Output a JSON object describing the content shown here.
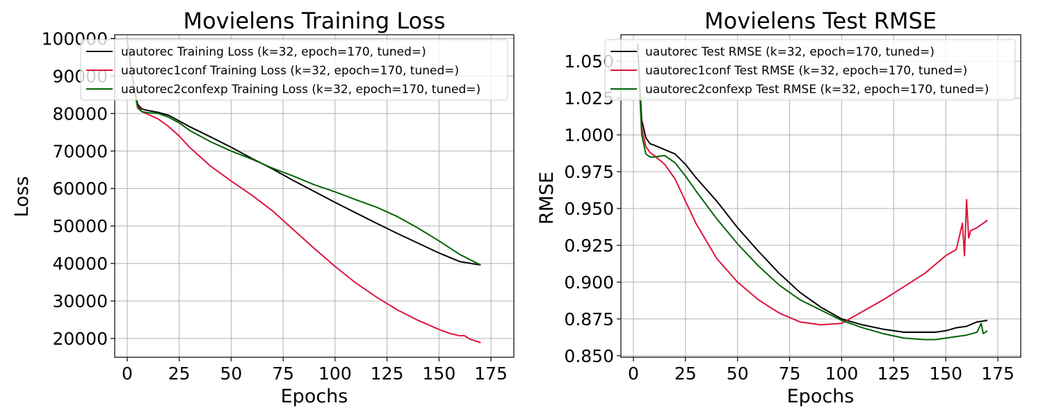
{
  "chart_data": [
    {
      "type": "line",
      "title": "Movielens Training Loss",
      "xlabel": "Epochs",
      "ylabel": "Loss",
      "xlim": [
        -6,
        186
      ],
      "ylim": [
        15000,
        101000
      ],
      "xticks": [
        0,
        25,
        50,
        75,
        100,
        125,
        150,
        175
      ],
      "xtick_labels": [
        "0",
        "25",
        "50",
        "75",
        "100",
        "125",
        "150",
        "175"
      ],
      "yticks": [
        20000,
        30000,
        40000,
        50000,
        60000,
        70000,
        80000,
        90000,
        100000
      ],
      "ytick_labels": [
        "20000",
        "30000",
        "40000",
        "50000",
        "60000",
        "70000",
        "80000",
        "90000",
        "100000"
      ],
      "grid": true,
      "legend_position": "top",
      "series": [
        {
          "name": "uautorec Training Loss (k=32, epoch=170, tuned=)",
          "color": "#000000",
          "x": [
            0,
            3,
            5,
            7,
            10,
            15,
            20,
            25,
            30,
            40,
            50,
            60,
            70,
            80,
            90,
            100,
            110,
            120,
            130,
            140,
            150,
            160,
            170
          ],
          "y": [
            99500,
            88000,
            82500,
            81200,
            80800,
            80300,
            79500,
            78000,
            76500,
            73800,
            71000,
            68000,
            65200,
            62100,
            59200,
            56300,
            53500,
            50700,
            48000,
            45400,
            42800,
            40500,
            39600
          ]
        },
        {
          "name": "uautorec1conf Training Loss (k=32, epoch=170, tuned=)",
          "color": "#dc143c",
          "x": [
            0,
            3,
            5,
            7,
            10,
            15,
            20,
            25,
            30,
            40,
            50,
            60,
            70,
            80,
            90,
            100,
            110,
            120,
            130,
            140,
            150,
            155,
            160,
            162,
            165,
            170
          ],
          "y": [
            99500,
            88000,
            82000,
            80500,
            79800,
            78500,
            76500,
            74000,
            71000,
            66000,
            62000,
            58200,
            54000,
            49000,
            44000,
            39200,
            34800,
            31000,
            27600,
            24800,
            22400,
            21400,
            20700,
            20800,
            19800,
            18900
          ]
        },
        {
          "name": "uautorec2confexp Training Loss (k=32, epoch=170, tuned=)",
          "color": "#006400",
          "x": [
            0,
            3,
            5,
            7,
            10,
            15,
            20,
            25,
            30,
            40,
            50,
            60,
            70,
            80,
            90,
            100,
            110,
            120,
            130,
            140,
            150,
            160,
            170
          ],
          "y": [
            99500,
            87500,
            81500,
            80500,
            80200,
            80000,
            79000,
            77500,
            75500,
            72500,
            70000,
            67800,
            65400,
            63300,
            61000,
            59100,
            57000,
            55000,
            52500,
            49400,
            46000,
            42400,
            39600
          ]
        }
      ]
    },
    {
      "type": "line",
      "title": "Movielens Test RMSE",
      "xlabel": "Epochs",
      "ylabel": "RMSE",
      "xlim": [
        -6,
        186
      ],
      "ylim": [
        0.849,
        1.068
      ],
      "xticks": [
        0,
        25,
        50,
        75,
        100,
        125,
        150,
        175
      ],
      "xtick_labels": [
        "0",
        "25",
        "50",
        "75",
        "100",
        "125",
        "150",
        "175"
      ],
      "yticks": [
        0.85,
        0.875,
        0.9,
        0.925,
        0.95,
        0.975,
        1.0,
        1.025,
        1.05
      ],
      "ytick_labels": [
        "0.850",
        "0.875",
        "0.900",
        "0.925",
        "0.950",
        "0.975",
        "1.000",
        "1.025",
        "1.050"
      ],
      "grid": true,
      "legend_position": "top",
      "series": [
        {
          "name": "uautorec Test RMSE (k=32, epoch=170, tuned=)",
          "color": "#000000",
          "x": [
            2,
            4,
            6,
            8,
            10,
            15,
            20,
            25,
            30,
            40,
            50,
            60,
            70,
            80,
            90,
            100,
            110,
            120,
            130,
            140,
            145,
            150,
            155,
            160,
            165,
            170
          ],
          "y": [
            1.062,
            1.01,
            0.998,
            0.994,
            0.993,
            0.99,
            0.987,
            0.98,
            0.971,
            0.955,
            0.937,
            0.921,
            0.906,
            0.893,
            0.883,
            0.875,
            0.871,
            0.868,
            0.866,
            0.866,
            0.866,
            0.867,
            0.869,
            0.87,
            0.873,
            0.874
          ]
        },
        {
          "name": "uautorec1conf Test RMSE (k=32, epoch=170, tuned=)",
          "color": "#dc143c",
          "x": [
            2,
            4,
            6,
            8,
            10,
            15,
            20,
            25,
            30,
            40,
            50,
            60,
            70,
            80,
            90,
            100,
            110,
            120,
            130,
            140,
            145,
            150,
            155,
            158,
            159,
            160,
            161,
            162,
            165,
            168,
            170
          ],
          "y": [
            1.06,
            1.005,
            0.992,
            0.988,
            0.986,
            0.98,
            0.97,
            0.955,
            0.94,
            0.916,
            0.9,
            0.888,
            0.879,
            0.873,
            0.871,
            0.872,
            0.88,
            0.888,
            0.897,
            0.906,
            0.912,
            0.918,
            0.922,
            0.94,
            0.918,
            0.956,
            0.93,
            0.935,
            0.937,
            0.94,
            0.942
          ]
        },
        {
          "name": "uautorec2confexp Test RMSE (k=32, epoch=170, tuned=)",
          "color": "#006400",
          "x": [
            2,
            4,
            6,
            8,
            10,
            15,
            20,
            25,
            30,
            40,
            50,
            60,
            70,
            80,
            90,
            100,
            110,
            120,
            130,
            140,
            145,
            150,
            155,
            160,
            165,
            167,
            168,
            170
          ],
          "y": [
            1.06,
            1.0,
            0.987,
            0.985,
            0.985,
            0.986,
            0.981,
            0.972,
            0.962,
            0.943,
            0.926,
            0.911,
            0.898,
            0.888,
            0.881,
            0.874,
            0.869,
            0.865,
            0.862,
            0.861,
            0.861,
            0.862,
            0.863,
            0.864,
            0.866,
            0.872,
            0.865,
            0.867
          ]
        }
      ]
    }
  ]
}
